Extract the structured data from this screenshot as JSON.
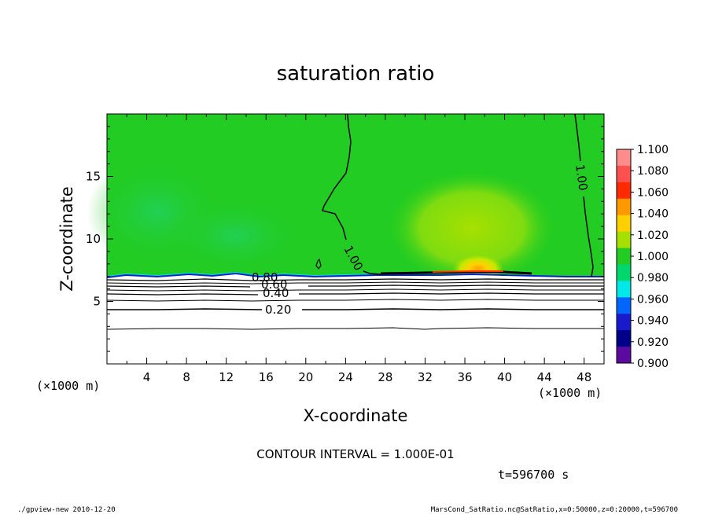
{
  "chart_data": {
    "type": "contour",
    "title": "saturation ratio",
    "xlabel": "X-coordinate",
    "ylabel": "Z-coordinate",
    "x_unit": "(×1000 m)",
    "y_unit": "(×1000 m)",
    "xlim": [
      0,
      50
    ],
    "ylim": [
      0,
      20
    ],
    "x_ticks": [
      4,
      8,
      12,
      16,
      20,
      24,
      28,
      32,
      36,
      40,
      44,
      48
    ],
    "y_ticks": [
      5,
      10,
      15
    ],
    "colorbar": {
      "levels": [
        "1.100",
        "1.080",
        "1.060",
        "1.040",
        "1.020",
        "1.000",
        "0.980",
        "0.960",
        "0.940",
        "0.920",
        "0.900"
      ],
      "colors": [
        "#ff8c8c",
        "#ff5050",
        "#ff2a00",
        "#ff9900",
        "#ffd000",
        "#a6e000",
        "#22cc22",
        "#00d86e",
        "#00e8e8",
        "#0066ff",
        "#1a1acc",
        "#000088",
        "#5a0a9e"
      ]
    },
    "contour_labels": [
      {
        "text": "1.00",
        "x": 24.6,
        "z": 8.5
      },
      {
        "text": "1.00",
        "x": 47.3,
        "z": 15.0
      },
      {
        "text": "0.80",
        "x": 31.2,
        "z": 6.9
      },
      {
        "text": "0.60",
        "x": 31.5,
        "z": 6.4
      },
      {
        "text": "0.40",
        "x": 31.5,
        "z": 5.8
      },
      {
        "text": "0.20",
        "x": 31.2,
        "z": 4.3
      }
    ],
    "contour_interval": "CONTOUR INTERVAL = 1.000E-01",
    "time": "t=596700 s"
  },
  "footer": {
    "left": "./gpview-new  2010-12-20",
    "right": "MarsCond_SatRatio.nc@SatRatio,x=0:50000,z=0:20000,t=596700"
  }
}
